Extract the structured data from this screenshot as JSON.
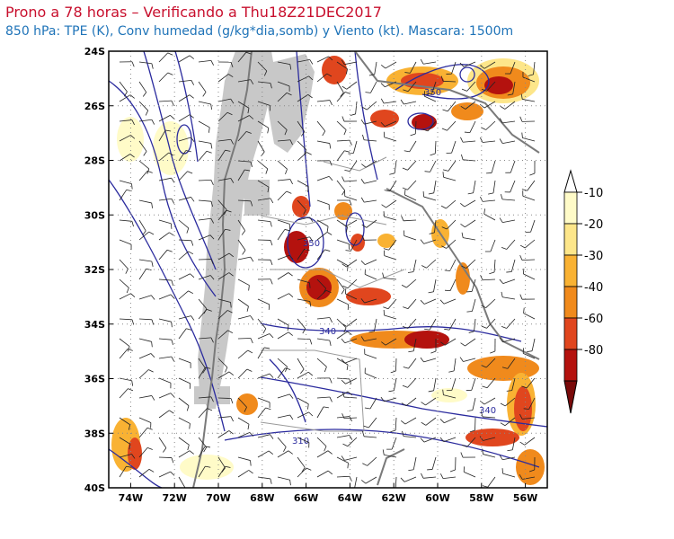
{
  "header": {
    "title": "Prono a 78 horas – Verificando a Thu18Z21DEC2017",
    "subtitle": "850 hPa: TPE (K), Conv humedad (g/kg*dia,somb) y Viento (kt). Mascara: 1500m"
  },
  "axes": {
    "lon_ticks": [
      "74W",
      "72W",
      "70W",
      "68W",
      "66W",
      "64W",
      "62W",
      "60W",
      "58W",
      "56W"
    ],
    "lat_ticks": [
      "24S",
      "26S",
      "28S",
      "30S",
      "32S",
      "34S",
      "36S",
      "38S",
      "40S"
    ],
    "lon_range": [
      -75,
      -55
    ],
    "lat_range": [
      -40,
      -24
    ]
  },
  "contour_labels": [
    "350",
    "350",
    "340",
    "340",
    "310"
  ],
  "colorbar": {
    "labels": [
      "-10",
      "-20",
      "-30",
      "-40",
      "-60",
      "-80"
    ],
    "colors": [
      "#fffbc8",
      "#fde68a",
      "#f9b233",
      "#f08a1c",
      "#e0461e",
      "#b4120e",
      "#7a0a0a"
    ]
  },
  "colors": {
    "contour": "#2b2b9e",
    "border": "#7a7a7a",
    "mask": "#c8c8c8",
    "title": "#c8102e",
    "subtitle": "#1e73b8"
  }
}
